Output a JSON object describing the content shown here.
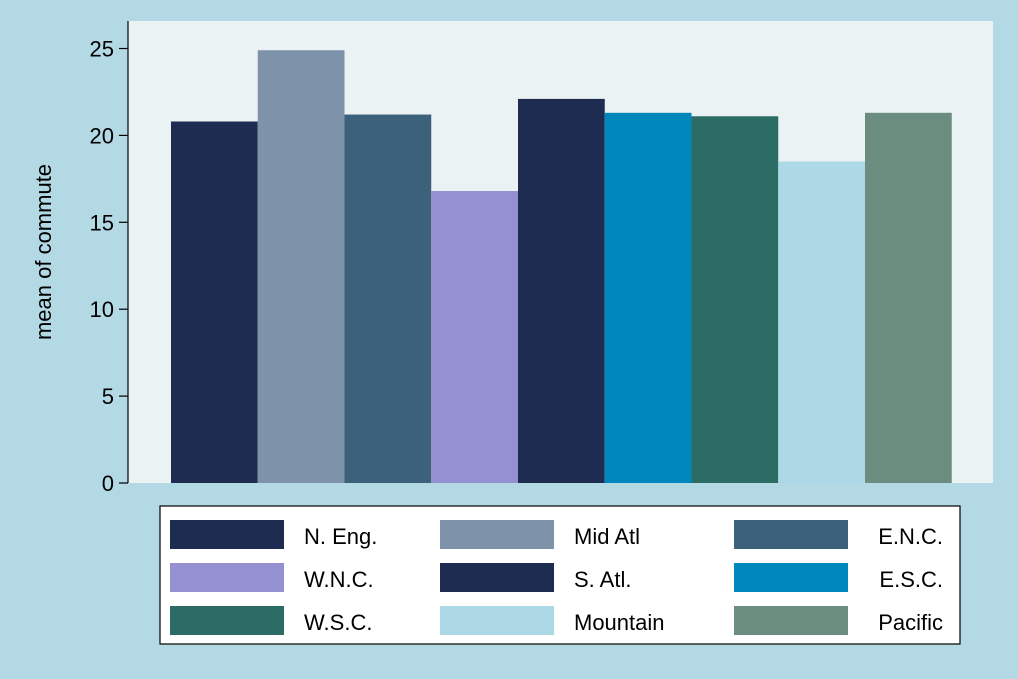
{
  "chart_data": {
    "type": "bar",
    "ylabel": "mean of commute",
    "xlabel": "",
    "ylim": [
      0,
      25
    ],
    "yticks": [
      0,
      5,
      10,
      15,
      20,
      25
    ],
    "grid": false,
    "legend_position": "bottom",
    "series": [
      {
        "name": "N. Eng.",
        "value": 20.8,
        "color": "#1e2c52"
      },
      {
        "name": "Mid Atl",
        "value": 24.9,
        "color": "#7e93a9"
      },
      {
        "name": "E.N.C.",
        "value": 21.2,
        "color": "#3c617b"
      },
      {
        "name": "W.N.C.",
        "value": 16.8,
        "color": "#9590d2"
      },
      {
        "name": "S. Atl.",
        "value": 22.1,
        "color": "#1e2c52"
      },
      {
        "name": "E.S.C.",
        "value": 21.3,
        "color": "#0088bd"
      },
      {
        "name": "W.S.C.",
        "value": 21.1,
        "color": "#2b6c64"
      },
      {
        "name": "Mountain",
        "value": 18.5,
        "color": "#add9e6"
      },
      {
        "name": "Pacific",
        "value": 21.3,
        "color": "#6b8d80"
      }
    ]
  }
}
